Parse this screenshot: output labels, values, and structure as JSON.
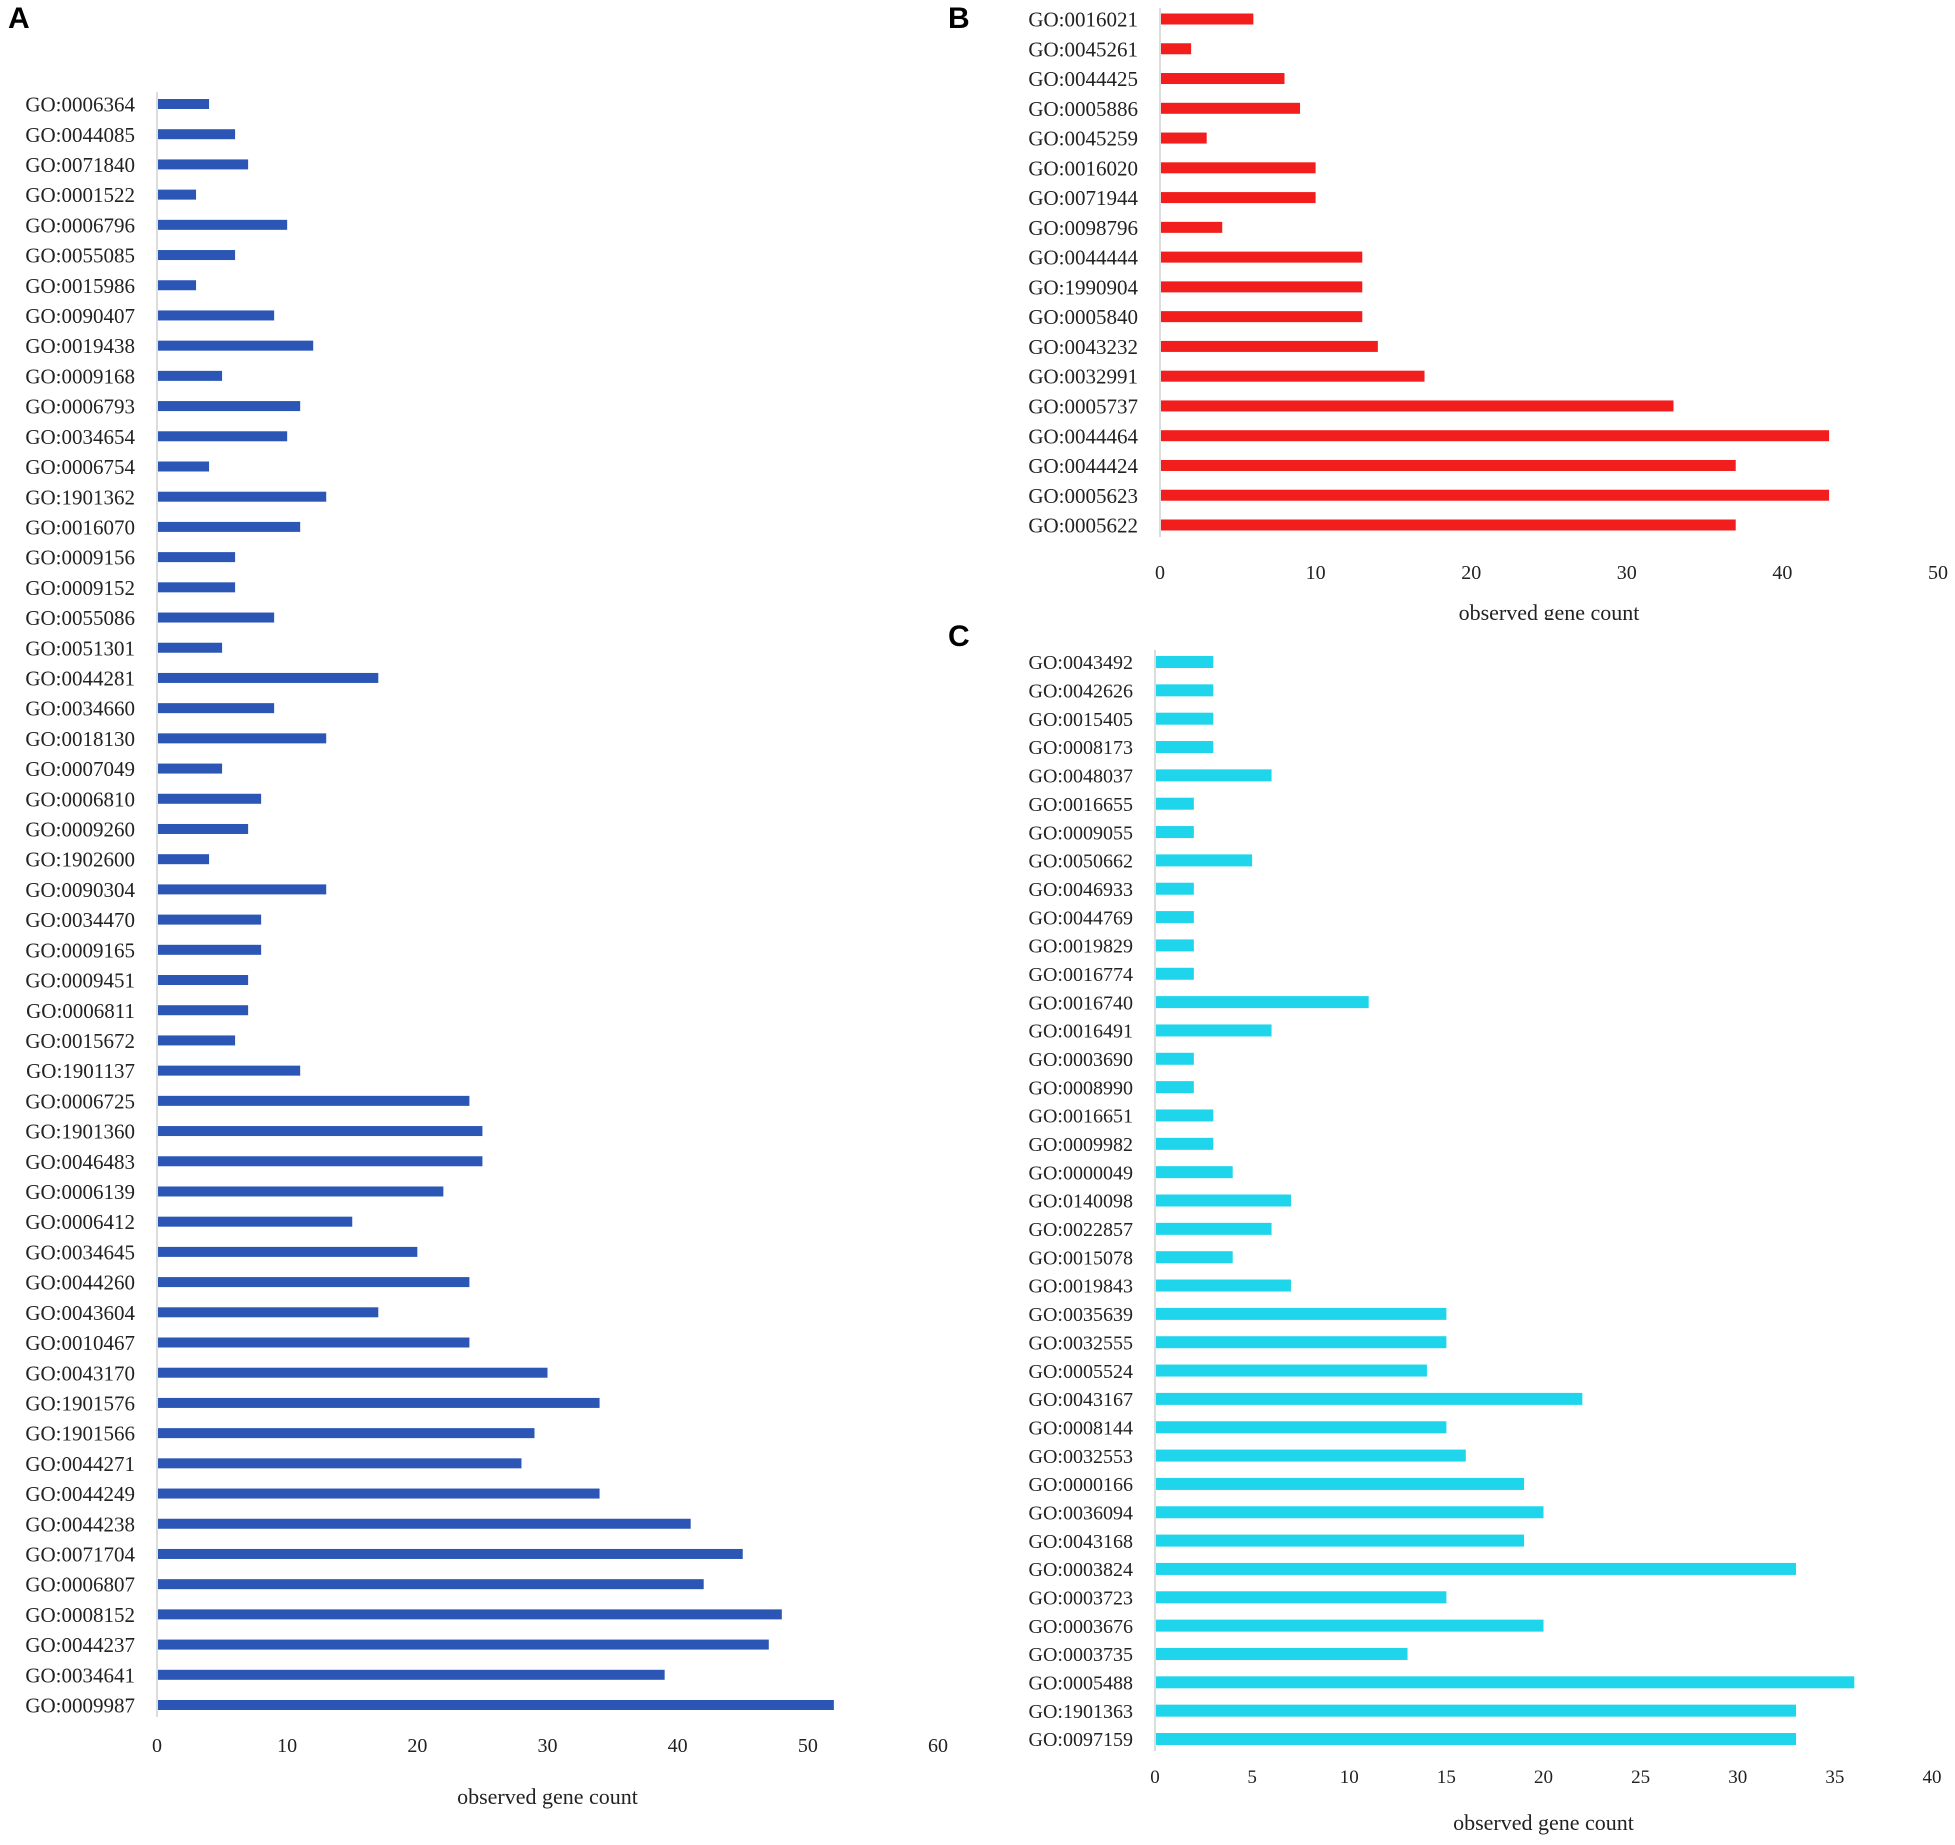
{
  "chart_data": [
    {
      "type": "bar",
      "orientation": "horizontal",
      "panel": "A",
      "color": "#2b56b6",
      "xlabel": "observed gene count",
      "xlim": [
        0,
        60
      ],
      "xticks": [
        0,
        10,
        20,
        30,
        40,
        50,
        60
      ],
      "categories": [
        "GO:0006364",
        "GO:0044085",
        "GO:0071840",
        "GO:0001522",
        "GO:0006796",
        "GO:0055085",
        "GO:0015986",
        "GO:0090407",
        "GO:0019438",
        "GO:0009168",
        "GO:0006793",
        "GO:0034654",
        "GO:0006754",
        "GO:1901362",
        "GO:0016070",
        "GO:0009156",
        "GO:0009152",
        "GO:0055086",
        "GO:0051301",
        "GO:0044281",
        "GO:0034660",
        "GO:0018130",
        "GO:0007049",
        "GO:0006810",
        "GO:0009260",
        "GO:1902600",
        "GO:0090304",
        "GO:0034470",
        "GO:0009165",
        "GO:0009451",
        "GO:0006811",
        "GO:0015672",
        "GO:1901137",
        "GO:0006725",
        "GO:1901360",
        "GO:0046483",
        "GO:0006139",
        "GO:0006412",
        "GO:0034645",
        "GO:0044260",
        "GO:0043604",
        "GO:0010467",
        "GO:0043170",
        "GO:1901576",
        "GO:1901566",
        "GO:0044271",
        "GO:0044249",
        "GO:0044238",
        "GO:0071704",
        "GO:0006807",
        "GO:0008152",
        "GO:0044237",
        "GO:0034641",
        "GO:0009987"
      ],
      "values": [
        4,
        6,
        7,
        3,
        10,
        6,
        3,
        9,
        12,
        5,
        11,
        10,
        4,
        13,
        11,
        6,
        6,
        9,
        5,
        17,
        9,
        13,
        5,
        8,
        7,
        4,
        13,
        8,
        8,
        7,
        7,
        6,
        11,
        24,
        25,
        25,
        22,
        15,
        20,
        24,
        17,
        24,
        30,
        34,
        29,
        28,
        34,
        41,
        45,
        42,
        48,
        47,
        39,
        52
      ]
    },
    {
      "type": "bar",
      "orientation": "horizontal",
      "panel": "B",
      "color": "#f21d1d",
      "xlabel": "observed gene count",
      "xlim": [
        0,
        50
      ],
      "xticks": [
        0,
        10,
        20,
        30,
        40,
        50
      ],
      "categories": [
        "GO:0016021",
        "GO:0045261",
        "GO:0044425",
        "GO:0005886",
        "GO:0045259",
        "GO:0016020",
        "GO:0071944",
        "GO:0098796",
        "GO:0044444",
        "GO:1990904",
        "GO:0005840",
        "GO:0043232",
        "GO:0032991",
        "GO:0005737",
        "GO:0044464",
        "GO:0044424",
        "GO:0005623",
        "GO:0005622"
      ],
      "values": [
        6,
        2,
        8,
        9,
        3,
        10,
        10,
        4,
        13,
        13,
        13,
        14,
        17,
        33,
        43,
        37,
        43,
        37
      ]
    },
    {
      "type": "bar",
      "orientation": "horizontal",
      "panel": "C",
      "color": "#1fd5eb",
      "xlabel": "observed gene count",
      "xlim": [
        0,
        40
      ],
      "xticks": [
        0,
        5,
        10,
        15,
        20,
        25,
        30,
        35,
        40
      ],
      "categories": [
        "GO:0043492",
        "GO:0042626",
        "GO:0015405",
        "GO:0008173",
        "GO:0048037",
        "GO:0016655",
        "GO:0009055",
        "GO:0050662",
        "GO:0046933",
        "GO:0044769",
        "GO:0019829",
        "GO:0016774",
        "GO:0016740",
        "GO:0016491",
        "GO:0003690",
        "GO:0008990",
        "GO:0016651",
        "GO:0009982",
        "GO:0000049",
        "GO:0140098",
        "GO:0022857",
        "GO:0015078",
        "GO:0019843",
        "GO:0035639",
        "GO:0032555",
        "GO:0005524",
        "GO:0043167",
        "GO:0008144",
        "GO:0032553",
        "GO:0000166",
        "GO:0036094",
        "GO:0043168",
        "GO:0003824",
        "GO:0003723",
        "GO:0003676",
        "GO:0003735",
        "GO:0005488",
        "GO:1901363",
        "GO:0097159"
      ],
      "values": [
        3,
        3,
        3,
        3,
        6,
        2,
        2,
        5,
        2,
        2,
        2,
        2,
        11,
        6,
        2,
        2,
        3,
        3,
        4,
        7,
        6,
        4,
        7,
        15,
        15,
        14,
        22,
        15,
        16,
        19,
        20,
        19,
        33,
        15,
        20,
        13,
        36,
        33,
        33
      ]
    }
  ]
}
